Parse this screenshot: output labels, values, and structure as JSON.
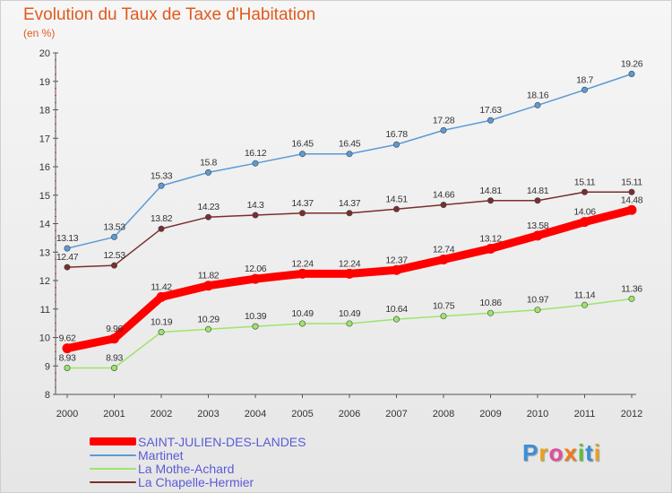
{
  "header": {
    "title": "Evolution du Taux de Taxe d'Habitation",
    "subtitle": "(en %)"
  },
  "logo": {
    "letters": [
      "P",
      "r",
      "o",
      "x",
      "i",
      "t",
      "i"
    ],
    "colors": [
      "#3b8fd8",
      "#e9a11f",
      "#e24c9c",
      "#f07a1a",
      "#5bbf3a",
      "#3b8fd8",
      "#e9a11f"
    ]
  },
  "chart_data": {
    "type": "line",
    "title": "Evolution du Taux de Taxe d'Habitation",
    "subtitle": "(en %)",
    "x": [
      "2000",
      "2001",
      "2002",
      "2003",
      "2004",
      "2005",
      "2006",
      "2007",
      "2008",
      "2009",
      "2010",
      "2011",
      "2012"
    ],
    "ylim": [
      8,
      20
    ],
    "yticks": [
      "8",
      "9",
      "10",
      "11",
      "12",
      "13",
      "14",
      "15",
      "16",
      "17",
      "18",
      "19",
      "20"
    ],
    "grid": false,
    "legend_position": "bottom-left",
    "series": [
      {
        "name": "SAINT-JULIEN-DES-LANDES",
        "color": "#ff0000",
        "values": [
          9.62,
          9.96,
          11.42,
          11.82,
          12.06,
          12.24,
          12.24,
          12.37,
          12.74,
          13.12,
          13.58,
          14.06,
          14.48
        ],
        "labels": [
          "9.62",
          "9.96",
          "11.42",
          "11.82",
          "12.06",
          "12.24",
          "12.24",
          "12.37",
          "12.74",
          "13.12",
          "13.58",
          "14.06",
          "14.48"
        ]
      },
      {
        "name": "Martinet",
        "color": "#5b9bd5",
        "values": [
          13.13,
          13.53,
          15.33,
          15.8,
          16.12,
          16.45,
          16.45,
          16.78,
          17.28,
          17.63,
          18.16,
          18.7,
          19.26
        ],
        "labels": [
          "13.13",
          "13.53",
          "15.33",
          "15.8",
          "16.12",
          "16.45",
          "16.45",
          "16.78",
          "17.28",
          "17.63",
          "18.16",
          "18.7",
          "19.26"
        ]
      },
      {
        "name": "La Mothe-Achard",
        "color": "#9be56a",
        "values": [
          8.93,
          8.93,
          10.19,
          10.29,
          10.39,
          10.49,
          10.49,
          10.64,
          10.75,
          10.86,
          10.97,
          11.14,
          11.36
        ],
        "labels": [
          "8.93",
          "8.93",
          "10.19",
          "10.29",
          "10.39",
          "10.49",
          "10.49",
          "10.64",
          "10.75",
          "10.86",
          "10.97",
          "11.14",
          "11.36"
        ]
      },
      {
        "name": "La Chapelle-Hermier",
        "color": "#7a2e2e",
        "values": [
          12.47,
          12.53,
          13.82,
          14.23,
          14.3,
          14.37,
          14.37,
          14.51,
          14.66,
          14.81,
          14.81,
          15.11,
          15.11
        ],
        "labels": [
          "12.47",
          "12.53",
          "13.82",
          "14.23",
          "14.3",
          "14.37",
          "14.37",
          "14.51",
          "14.66",
          "14.81",
          "14.81",
          "15.11",
          "15.11"
        ]
      }
    ]
  }
}
